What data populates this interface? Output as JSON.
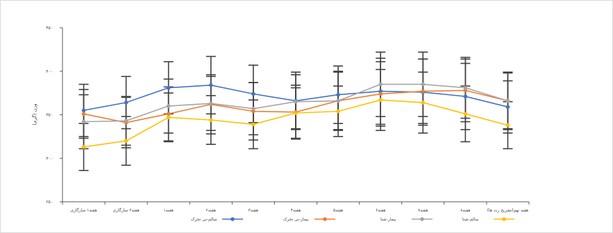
{
  "chart_data": {
    "type": "line",
    "title": "",
    "xlabel": "",
    "ylabel": "(گرم) وزن",
    "ylim": [
      250,
      450
    ],
    "y_tick_values": [
      250,
      300,
      350,
      400,
      450
    ],
    "y_tick_labels": [
      "۲۵۰",
      "۳۰۰",
      "۳۵۰",
      "۴۰۰",
      "۴۵۰"
    ],
    "categories": [
      "هفته۱ سازگاری",
      "هفته۲ سازگاری",
      "هفته۱",
      "هفته۲",
      "هفته۳",
      "هفته۴",
      "هفته۵",
      "هفته۶",
      "هفته۷",
      "هفته۸",
      "هفته نهم(تشریح رت ها)"
    ],
    "grid": false,
    "legend_position": "bottom",
    "error_bars": true,
    "series": [
      {
        "name": "سالم-بی تحرک",
        "color": "#4472C4",
        "values": [
          355,
          364,
          381,
          384,
          374,
          366,
          373,
          377,
          376,
          371,
          359
        ],
        "errors": [
          30,
          30,
          30,
          33,
          33,
          33,
          33,
          38,
          38,
          38,
          30
        ]
      },
      {
        "name": "بیمار-بی تحرک",
        "color": "#ED7D31",
        "values": [
          351,
          341,
          351,
          362,
          354,
          353,
          366,
          374,
          377,
          378,
          366
        ],
        "errors": [
          28,
          29,
          31,
          34,
          33,
          31,
          34,
          37,
          37,
          36,
          33
        ]
      },
      {
        "name": "بیمار-شنا",
        "color": "#A5A5A5",
        "values": [
          342,
          343,
          360,
          363,
          357,
          365,
          366,
          385,
          385,
          381,
          366
        ],
        "errors": [
          31,
          28,
          31,
          31,
          30,
          31,
          33,
          37,
          37,
          35,
          32
        ]
      },
      {
        "name": "سالم-شنا",
        "color": "#FFC000",
        "values": [
          313,
          320,
          347,
          344,
          339,
          352,
          354,
          367,
          364,
          351,
          338
        ],
        "errors": [
          27,
          28,
          28,
          28,
          28,
          29,
          29,
          35,
          35,
          32,
          27
        ]
      }
    ]
  }
}
